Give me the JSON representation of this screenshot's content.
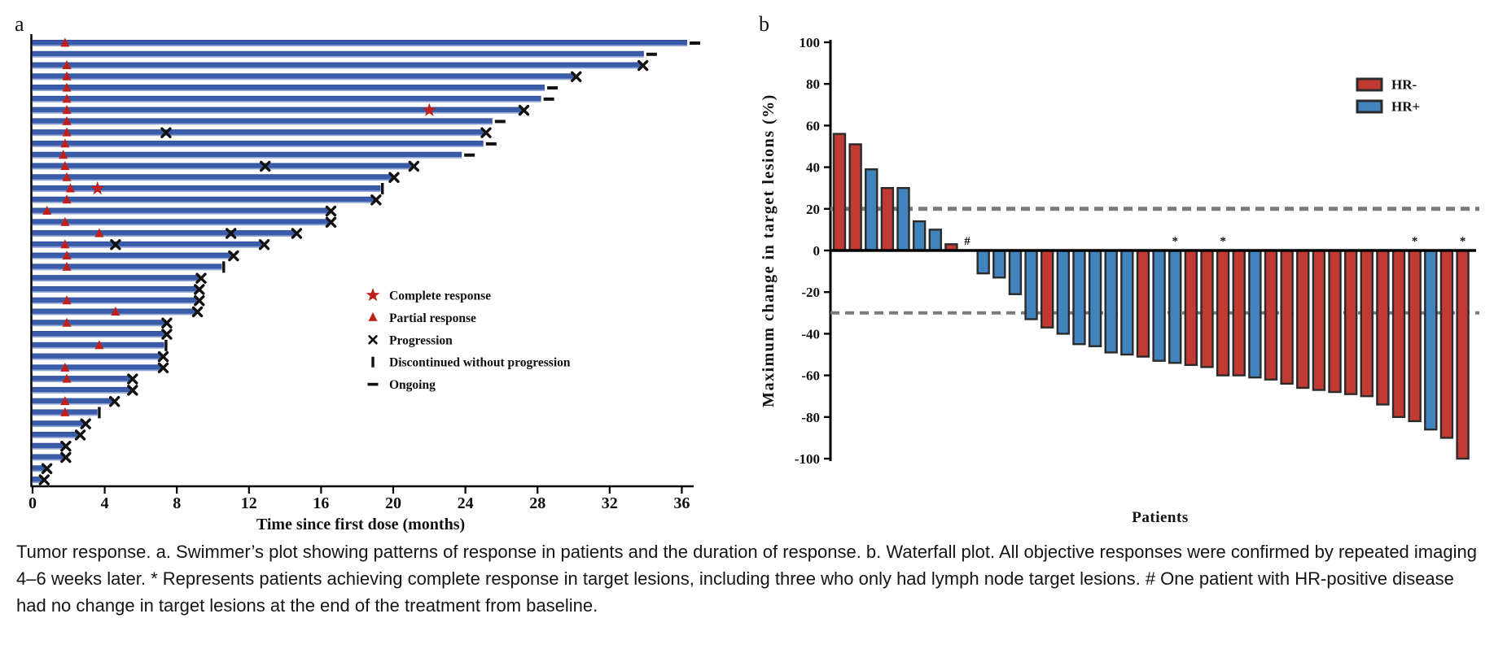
{
  "figure": {
    "caption": "Tumor response. a. Swimmer’s plot showing patterns of response in patients and the duration of response. b. Waterfall plot. All objective responses were confirmed by repeated imaging 4–6 weeks later. * Represents patients achieving complete response in target lesions, including three who only had lymph node target lesions. # One patient with HR-positive disease had no change in target lesions at the end of the treatment from baseline."
  },
  "chart_data": [
    {
      "type": "bar",
      "variant": "swimmer",
      "panel_label": "a",
      "xlabel": "Time since first dose (months)",
      "x_ticks": [
        0,
        4,
        8,
        12,
        16,
        20,
        24,
        28,
        32,
        36
      ],
      "xlim": [
        0,
        38.5
      ],
      "grid": false,
      "bar_color": "#3a5ca8",
      "bar_color_light": "#93a7d6",
      "marker_color_response": "#c01f1c",
      "marker_color_event": "#111111",
      "legend_position": "center-right",
      "legend": [
        {
          "icon": "star-icon",
          "symbol": "star",
          "label": "Complete response"
        },
        {
          "icon": "triangle-icon",
          "symbol": "triangle",
          "label": "Partial response"
        },
        {
          "icon": "x-icon",
          "symbol": "x",
          "label": "Progression"
        },
        {
          "icon": "vbar-icon",
          "symbol": "vbar",
          "label": "Discontinued without progression"
        },
        {
          "icon": "dash-icon",
          "symbol": "dash",
          "label": "Ongoing"
        }
      ],
      "patients": [
        {
          "end_month": 36.3,
          "end_marker": "ongoing",
          "events": [
            {
              "type": "partial_response",
              "month": 1.8
            }
          ]
        },
        {
          "end_month": 33.9,
          "end_marker": "ongoing",
          "events": []
        },
        {
          "end_month": 33.8,
          "end_marker": "progression",
          "events": [
            {
              "type": "partial_response",
              "month": 1.9
            }
          ]
        },
        {
          "end_month": 30.1,
          "end_marker": "progression",
          "events": [
            {
              "type": "partial_response",
              "month": 1.9
            }
          ]
        },
        {
          "end_month": 28.4,
          "end_marker": "ongoing",
          "events": [
            {
              "type": "partial_response",
              "month": 1.9
            }
          ]
        },
        {
          "end_month": 28.2,
          "end_marker": "ongoing",
          "events": [
            {
              "type": "partial_response",
              "month": 1.9
            }
          ]
        },
        {
          "end_month": 27.2,
          "end_marker": "progression",
          "events": [
            {
              "type": "partial_response",
              "month": 1.9
            },
            {
              "type": "complete_response",
              "month": 22.0
            }
          ]
        },
        {
          "end_month": 25.5,
          "end_marker": "ongoing",
          "events": [
            {
              "type": "partial_response",
              "month": 1.9
            }
          ]
        },
        {
          "end_month": 25.1,
          "end_marker": "progression",
          "events": [
            {
              "type": "partial_response",
              "month": 1.9
            },
            {
              "type": "progression",
              "month": 7.4
            }
          ]
        },
        {
          "end_month": 25.0,
          "end_marker": "ongoing",
          "events": [
            {
              "type": "partial_response",
              "month": 1.8
            }
          ]
        },
        {
          "end_month": 23.8,
          "end_marker": "ongoing",
          "events": [
            {
              "type": "partial_response",
              "month": 1.7
            }
          ]
        },
        {
          "end_month": 21.1,
          "end_marker": "progression",
          "events": [
            {
              "type": "partial_response",
              "month": 1.8
            },
            {
              "type": "progression",
              "month": 12.9
            }
          ]
        },
        {
          "end_month": 20.0,
          "end_marker": "progression",
          "events": [
            {
              "type": "partial_response",
              "month": 1.9
            }
          ]
        },
        {
          "end_month": 19.3,
          "end_marker": "discontinued",
          "events": [
            {
              "type": "partial_response",
              "month": 2.1
            },
            {
              "type": "complete_response",
              "month": 3.6
            }
          ]
        },
        {
          "end_month": 19.0,
          "end_marker": "progression",
          "events": [
            {
              "type": "partial_response",
              "month": 1.9
            }
          ]
        },
        {
          "end_month": 16.5,
          "end_marker": "progression",
          "events": [
            {
              "type": "partial_response",
              "month": 0.8
            }
          ]
        },
        {
          "end_month": 16.5,
          "end_marker": "progression",
          "events": [
            {
              "type": "partial_response",
              "month": 1.8
            }
          ]
        },
        {
          "end_month": 14.6,
          "end_marker": "progression",
          "events": [
            {
              "type": "partial_response",
              "month": 3.7
            },
            {
              "type": "progression",
              "month": 11.0
            }
          ]
        },
        {
          "end_month": 12.8,
          "end_marker": "progression",
          "events": [
            {
              "type": "partial_response",
              "month": 1.8
            },
            {
              "type": "progression",
              "month": 4.6
            }
          ]
        },
        {
          "end_month": 11.1,
          "end_marker": "progression",
          "events": [
            {
              "type": "partial_response",
              "month": 1.9
            }
          ]
        },
        {
          "end_month": 10.5,
          "end_marker": "discontinued",
          "events": [
            {
              "type": "partial_response",
              "month": 1.9
            }
          ]
        },
        {
          "end_month": 9.3,
          "end_marker": "progression",
          "events": []
        },
        {
          "end_month": 9.2,
          "end_marker": "progression",
          "events": []
        },
        {
          "end_month": 9.2,
          "end_marker": "progression",
          "events": [
            {
              "type": "partial_response",
              "month": 1.9
            }
          ]
        },
        {
          "end_month": 9.1,
          "end_marker": "progression",
          "events": [
            {
              "type": "partial_response",
              "month": 4.6
            }
          ]
        },
        {
          "end_month": 7.4,
          "end_marker": "progression",
          "events": [
            {
              "type": "partial_response",
              "month": 1.9
            }
          ]
        },
        {
          "end_month": 7.4,
          "end_marker": "progression",
          "events": []
        },
        {
          "end_month": 7.3,
          "end_marker": "discontinued",
          "events": [
            {
              "type": "partial_response",
              "month": 3.7
            }
          ]
        },
        {
          "end_month": 7.2,
          "end_marker": "progression",
          "events": []
        },
        {
          "end_month": 7.2,
          "end_marker": "progression",
          "events": [
            {
              "type": "partial_response",
              "month": 1.8
            }
          ]
        },
        {
          "end_month": 5.5,
          "end_marker": "progression",
          "events": [
            {
              "type": "partial_response",
              "month": 1.9
            }
          ]
        },
        {
          "end_month": 5.5,
          "end_marker": "progression",
          "events": []
        },
        {
          "end_month": 4.5,
          "end_marker": "progression",
          "events": [
            {
              "type": "partial_response",
              "month": 1.8
            }
          ]
        },
        {
          "end_month": 3.6,
          "end_marker": "discontinued",
          "events": [
            {
              "type": "partial_response",
              "month": 1.8
            }
          ]
        },
        {
          "end_month": 2.9,
          "end_marker": "progression",
          "events": []
        },
        {
          "end_month": 2.6,
          "end_marker": "progression",
          "events": []
        },
        {
          "end_month": 1.8,
          "end_marker": "progression",
          "events": []
        },
        {
          "end_month": 1.8,
          "end_marker": "progression",
          "events": []
        },
        {
          "end_month": 0.75,
          "end_marker": "progression",
          "events": []
        },
        {
          "end_month": 0.6,
          "end_marker": "progression",
          "events": []
        }
      ]
    },
    {
      "type": "bar",
      "variant": "waterfall",
      "panel_label": "b",
      "ylabel": "Maximum change in target lesions (%)",
      "xlabel": "Patients",
      "ylim": [
        -100,
        100
      ],
      "y_ticks": [
        100,
        80,
        60,
        40,
        20,
        0,
        -20,
        -40,
        -60,
        -80,
        -100
      ],
      "grid": false,
      "reference_lines": [
        20,
        -30
      ],
      "reference_color": "#7a7a7a",
      "bar_edge_color": "#2b2b2b",
      "legend_position": "top-right",
      "legend": [
        {
          "label": "HR-",
          "color": "#c13b33"
        },
        {
          "label": "HR+",
          "color": "#4083bd"
        }
      ],
      "bars": [
        {
          "value": 56,
          "group": "HR-",
          "annotation": ""
        },
        {
          "value": 51,
          "group": "HR-",
          "annotation": ""
        },
        {
          "value": 39,
          "group": "HR+",
          "annotation": ""
        },
        {
          "value": 30,
          "group": "HR-",
          "annotation": ""
        },
        {
          "value": 30,
          "group": "HR+",
          "annotation": ""
        },
        {
          "value": 14,
          "group": "HR+",
          "annotation": ""
        },
        {
          "value": 10,
          "group": "HR+",
          "annotation": ""
        },
        {
          "value": 3,
          "group": "HR-",
          "annotation": ""
        },
        {
          "value": 0,
          "group": "HR+",
          "annotation": "#"
        },
        {
          "value": -11,
          "group": "HR+",
          "annotation": ""
        },
        {
          "value": -13,
          "group": "HR+",
          "annotation": ""
        },
        {
          "value": -21,
          "group": "HR+",
          "annotation": ""
        },
        {
          "value": -33,
          "group": "HR+",
          "annotation": ""
        },
        {
          "value": -37,
          "group": "HR-",
          "annotation": ""
        },
        {
          "value": -40,
          "group": "HR+",
          "annotation": ""
        },
        {
          "value": -45,
          "group": "HR+",
          "annotation": ""
        },
        {
          "value": -46,
          "group": "HR+",
          "annotation": ""
        },
        {
          "value": -49,
          "group": "HR+",
          "annotation": ""
        },
        {
          "value": -50,
          "group": "HR+",
          "annotation": ""
        },
        {
          "value": -51,
          "group": "HR-",
          "annotation": ""
        },
        {
          "value": -53,
          "group": "HR+",
          "annotation": ""
        },
        {
          "value": -54,
          "group": "HR+",
          "annotation": "*"
        },
        {
          "value": -55,
          "group": "HR-",
          "annotation": ""
        },
        {
          "value": -56,
          "group": "HR-",
          "annotation": ""
        },
        {
          "value": -60,
          "group": "HR-",
          "annotation": "*"
        },
        {
          "value": -60,
          "group": "HR-",
          "annotation": ""
        },
        {
          "value": -61,
          "group": "HR+",
          "annotation": ""
        },
        {
          "value": -62,
          "group": "HR-",
          "annotation": ""
        },
        {
          "value": -64,
          "group": "HR-",
          "annotation": ""
        },
        {
          "value": -66,
          "group": "HR-",
          "annotation": ""
        },
        {
          "value": -67,
          "group": "HR-",
          "annotation": ""
        },
        {
          "value": -68,
          "group": "HR-",
          "annotation": ""
        },
        {
          "value": -69,
          "group": "HR-",
          "annotation": ""
        },
        {
          "value": -70,
          "group": "HR-",
          "annotation": ""
        },
        {
          "value": -74,
          "group": "HR-",
          "annotation": ""
        },
        {
          "value": -80,
          "group": "HR-",
          "annotation": ""
        },
        {
          "value": -82,
          "group": "HR-",
          "annotation": "*"
        },
        {
          "value": -86,
          "group": "HR+",
          "annotation": ""
        },
        {
          "value": -90,
          "group": "HR-",
          "annotation": ""
        },
        {
          "value": -100,
          "group": "HR-",
          "annotation": "*"
        }
      ]
    }
  ]
}
